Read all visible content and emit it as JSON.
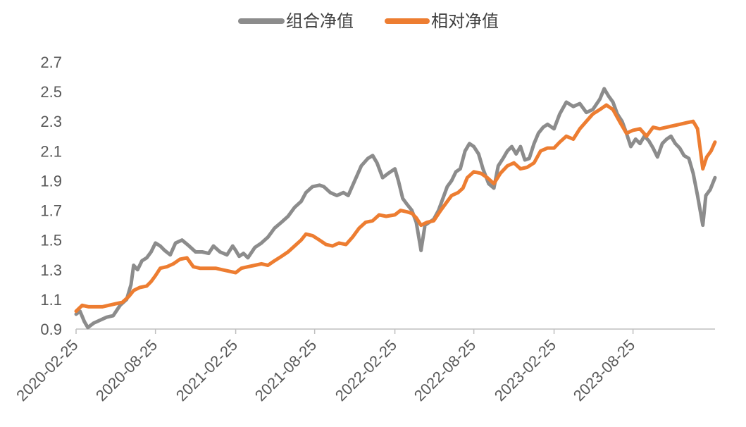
{
  "legend": {
    "position": "top-center",
    "items": [
      {
        "label": "组合净值",
        "color": "#8c8c8c"
      },
      {
        "label": "相对净值",
        "color": "#ed7d31"
      }
    ]
  },
  "chart_data": {
    "type": "line",
    "title": "",
    "xlabel": "",
    "ylabel": "",
    "grid": false,
    "ylim": [
      0.9,
      2.7
    ],
    "yticks": [
      "0.9",
      "1.1",
      "1.3",
      "1.5",
      "1.7",
      "1.9",
      "2.1",
      "2.3",
      "2.5",
      "2.7"
    ],
    "xlim": [
      "2020-02-25",
      "2024-02-29"
    ],
    "xticks": [
      "2020-02-25",
      "2020-08-25",
      "2021-02-25",
      "2021-08-25",
      "2022-02-25",
      "2022-08-25",
      "2023-02-25",
      "2023-08-25"
    ],
    "series": [
      {
        "name": "组合净值",
        "color": "#8c8c8c",
        "points": [
          [
            "2020-02-25",
            1.0
          ],
          [
            "2020-03-05",
            1.02
          ],
          [
            "2020-03-15",
            0.95
          ],
          [
            "2020-03-23",
            0.91
          ],
          [
            "2020-04-05",
            0.94
          ],
          [
            "2020-04-20",
            0.96
          ],
          [
            "2020-05-05",
            0.98
          ],
          [
            "2020-05-20",
            0.99
          ],
          [
            "2020-06-05",
            1.06
          ],
          [
            "2020-06-20",
            1.1
          ],
          [
            "2020-06-30",
            1.2
          ],
          [
            "2020-07-06",
            1.33
          ],
          [
            "2020-07-15",
            1.3
          ],
          [
            "2020-07-25",
            1.36
          ],
          [
            "2020-08-05",
            1.38
          ],
          [
            "2020-08-15",
            1.42
          ],
          [
            "2020-08-25",
            1.48
          ],
          [
            "2020-09-05",
            1.46
          ],
          [
            "2020-09-15",
            1.43
          ],
          [
            "2020-09-28",
            1.4
          ],
          [
            "2020-10-10",
            1.48
          ],
          [
            "2020-10-25",
            1.5
          ],
          [
            "2020-11-10",
            1.46
          ],
          [
            "2020-11-25",
            1.42
          ],
          [
            "2020-12-10",
            1.42
          ],
          [
            "2020-12-25",
            1.41
          ],
          [
            "2021-01-05",
            1.46
          ],
          [
            "2021-01-20",
            1.42
          ],
          [
            "2021-02-05",
            1.4
          ],
          [
            "2021-02-18",
            1.46
          ],
          [
            "2021-02-25",
            1.43
          ],
          [
            "2021-03-05",
            1.39
          ],
          [
            "2021-03-15",
            1.41
          ],
          [
            "2021-03-25",
            1.38
          ],
          [
            "2021-04-10",
            1.45
          ],
          [
            "2021-04-25",
            1.48
          ],
          [
            "2021-05-10",
            1.52
          ],
          [
            "2021-05-25",
            1.58
          ],
          [
            "2021-06-10",
            1.62
          ],
          [
            "2021-06-25",
            1.66
          ],
          [
            "2021-07-10",
            1.72
          ],
          [
            "2021-07-25",
            1.76
          ],
          [
            "2021-08-05",
            1.82
          ],
          [
            "2021-08-20",
            1.86
          ],
          [
            "2021-09-05",
            1.87
          ],
          [
            "2021-09-15",
            1.86
          ],
          [
            "2021-09-30",
            1.82
          ],
          [
            "2021-10-15",
            1.8
          ],
          [
            "2021-10-30",
            1.82
          ],
          [
            "2021-11-10",
            1.8
          ],
          [
            "2021-11-25",
            1.9
          ],
          [
            "2021-12-10",
            2.0
          ],
          [
            "2021-12-25",
            2.05
          ],
          [
            "2022-01-05",
            2.07
          ],
          [
            "2022-01-15",
            2.02
          ],
          [
            "2022-01-28",
            1.92
          ],
          [
            "2022-02-10",
            1.95
          ],
          [
            "2022-02-25",
            1.98
          ],
          [
            "2022-03-05",
            1.9
          ],
          [
            "2022-03-15",
            1.78
          ],
          [
            "2022-03-25",
            1.74
          ],
          [
            "2022-04-05",
            1.7
          ],
          [
            "2022-04-15",
            1.62
          ],
          [
            "2022-04-26",
            1.43
          ],
          [
            "2022-05-05",
            1.6
          ],
          [
            "2022-05-15",
            1.62
          ],
          [
            "2022-05-25",
            1.64
          ],
          [
            "2022-06-05",
            1.7
          ],
          [
            "2022-06-15",
            1.78
          ],
          [
            "2022-06-25",
            1.86
          ],
          [
            "2022-07-05",
            1.9
          ],
          [
            "2022-07-15",
            1.96
          ],
          [
            "2022-07-25",
            1.98
          ],
          [
            "2022-08-05",
            2.1
          ],
          [
            "2022-08-15",
            2.15
          ],
          [
            "2022-08-25",
            2.13
          ],
          [
            "2022-09-05",
            2.08
          ],
          [
            "2022-09-15",
            1.98
          ],
          [
            "2022-09-28",
            1.88
          ],
          [
            "2022-10-10",
            1.85
          ],
          [
            "2022-10-20",
            2.0
          ],
          [
            "2022-10-31",
            2.05
          ],
          [
            "2022-11-10",
            2.1
          ],
          [
            "2022-11-20",
            2.13
          ],
          [
            "2022-11-30",
            2.08
          ],
          [
            "2022-12-10",
            2.13
          ],
          [
            "2022-12-20",
            2.04
          ],
          [
            "2022-12-30",
            2.05
          ],
          [
            "2023-01-10",
            2.15
          ],
          [
            "2023-01-20",
            2.22
          ],
          [
            "2023-01-31",
            2.26
          ],
          [
            "2023-02-10",
            2.28
          ],
          [
            "2023-02-25",
            2.25
          ],
          [
            "2023-03-10",
            2.35
          ],
          [
            "2023-03-25",
            2.43
          ],
          [
            "2023-04-10",
            2.4
          ],
          [
            "2023-04-25",
            2.42
          ],
          [
            "2023-05-10",
            2.36
          ],
          [
            "2023-05-25",
            2.38
          ],
          [
            "2023-06-10",
            2.45
          ],
          [
            "2023-06-20",
            2.52
          ],
          [
            "2023-06-30",
            2.47
          ],
          [
            "2023-07-10",
            2.43
          ],
          [
            "2023-07-20",
            2.35
          ],
          [
            "2023-07-31",
            2.3
          ],
          [
            "2023-08-10",
            2.22
          ],
          [
            "2023-08-20",
            2.13
          ],
          [
            "2023-08-31",
            2.18
          ],
          [
            "2023-09-10",
            2.15
          ],
          [
            "2023-09-20",
            2.2
          ],
          [
            "2023-09-30",
            2.17
          ],
          [
            "2023-10-10",
            2.12
          ],
          [
            "2023-10-20",
            2.06
          ],
          [
            "2023-10-31",
            2.15
          ],
          [
            "2023-11-10",
            2.18
          ],
          [
            "2023-11-20",
            2.2
          ],
          [
            "2023-11-30",
            2.15
          ],
          [
            "2023-12-10",
            2.12
          ],
          [
            "2023-12-20",
            2.07
          ],
          [
            "2023-12-31",
            2.05
          ],
          [
            "2024-01-10",
            1.95
          ],
          [
            "2024-01-20",
            1.8
          ],
          [
            "2024-02-01",
            1.6
          ],
          [
            "2024-02-08",
            1.8
          ],
          [
            "2024-02-18",
            1.84
          ],
          [
            "2024-02-29",
            1.92
          ]
        ]
      },
      {
        "name": "相对净值",
        "color": "#ed7d31",
        "points": [
          [
            "2020-02-25",
            1.02
          ],
          [
            "2020-03-10",
            1.06
          ],
          [
            "2020-03-25",
            1.05
          ],
          [
            "2020-04-10",
            1.05
          ],
          [
            "2020-04-25",
            1.05
          ],
          [
            "2020-05-10",
            1.06
          ],
          [
            "2020-05-25",
            1.07
          ],
          [
            "2020-06-10",
            1.08
          ],
          [
            "2020-06-25",
            1.12
          ],
          [
            "2020-07-06",
            1.16
          ],
          [
            "2020-07-20",
            1.18
          ],
          [
            "2020-08-05",
            1.19
          ],
          [
            "2020-08-15",
            1.22
          ],
          [
            "2020-08-25",
            1.26
          ],
          [
            "2020-09-05",
            1.31
          ],
          [
            "2020-09-20",
            1.32
          ],
          [
            "2020-10-05",
            1.34
          ],
          [
            "2020-10-20",
            1.37
          ],
          [
            "2020-11-05",
            1.38
          ],
          [
            "2020-11-20",
            1.32
          ],
          [
            "2020-12-05",
            1.31
          ],
          [
            "2020-12-25",
            1.31
          ],
          [
            "2021-01-10",
            1.31
          ],
          [
            "2021-01-25",
            1.3
          ],
          [
            "2021-02-10",
            1.29
          ],
          [
            "2021-02-25",
            1.28
          ],
          [
            "2021-03-10",
            1.31
          ],
          [
            "2021-03-25",
            1.32
          ],
          [
            "2021-04-10",
            1.33
          ],
          [
            "2021-04-25",
            1.34
          ],
          [
            "2021-05-10",
            1.33
          ],
          [
            "2021-05-25",
            1.36
          ],
          [
            "2021-06-10",
            1.39
          ],
          [
            "2021-06-25",
            1.42
          ],
          [
            "2021-07-10",
            1.46
          ],
          [
            "2021-07-25",
            1.5
          ],
          [
            "2021-08-05",
            1.54
          ],
          [
            "2021-08-20",
            1.53
          ],
          [
            "2021-09-05",
            1.5
          ],
          [
            "2021-09-20",
            1.47
          ],
          [
            "2021-10-05",
            1.46
          ],
          [
            "2021-10-20",
            1.48
          ],
          [
            "2021-11-05",
            1.47
          ],
          [
            "2021-11-20",
            1.52
          ],
          [
            "2021-12-05",
            1.58
          ],
          [
            "2021-12-20",
            1.62
          ],
          [
            "2022-01-05",
            1.63
          ],
          [
            "2022-01-20",
            1.67
          ],
          [
            "2022-02-05",
            1.66
          ],
          [
            "2022-02-25",
            1.67
          ],
          [
            "2022-03-10",
            1.7
          ],
          [
            "2022-03-25",
            1.69
          ],
          [
            "2022-04-05",
            1.68
          ],
          [
            "2022-04-15",
            1.65
          ],
          [
            "2022-04-26",
            1.6
          ],
          [
            "2022-05-10",
            1.62
          ],
          [
            "2022-05-25",
            1.63
          ],
          [
            "2022-06-10",
            1.7
          ],
          [
            "2022-06-25",
            1.76
          ],
          [
            "2022-07-05",
            1.8
          ],
          [
            "2022-07-20",
            1.82
          ],
          [
            "2022-07-31",
            1.85
          ],
          [
            "2022-08-10",
            1.92
          ],
          [
            "2022-08-25",
            1.96
          ],
          [
            "2022-09-10",
            1.95
          ],
          [
            "2022-09-25",
            1.92
          ],
          [
            "2022-10-10",
            1.88
          ],
          [
            "2022-10-25",
            1.95
          ],
          [
            "2022-11-10",
            2.0
          ],
          [
            "2022-11-25",
            2.02
          ],
          [
            "2022-12-10",
            1.98
          ],
          [
            "2022-12-25",
            1.99
          ],
          [
            "2023-01-10",
            2.02
          ],
          [
            "2023-01-25",
            2.1
          ],
          [
            "2023-02-10",
            2.12
          ],
          [
            "2023-02-25",
            2.12
          ],
          [
            "2023-03-10",
            2.16
          ],
          [
            "2023-03-25",
            2.2
          ],
          [
            "2023-04-10",
            2.18
          ],
          [
            "2023-04-25",
            2.25
          ],
          [
            "2023-05-10",
            2.3
          ],
          [
            "2023-05-25",
            2.35
          ],
          [
            "2023-06-10",
            2.38
          ],
          [
            "2023-06-25",
            2.41
          ],
          [
            "2023-07-10",
            2.38
          ],
          [
            "2023-07-25",
            2.3
          ],
          [
            "2023-08-10",
            2.22
          ],
          [
            "2023-08-25",
            2.24
          ],
          [
            "2023-09-10",
            2.25
          ],
          [
            "2023-09-25",
            2.2
          ],
          [
            "2023-10-10",
            2.26
          ],
          [
            "2023-10-25",
            2.25
          ],
          [
            "2023-11-10",
            2.26
          ],
          [
            "2023-11-25",
            2.27
          ],
          [
            "2023-12-10",
            2.28
          ],
          [
            "2023-12-25",
            2.29
          ],
          [
            "2024-01-10",
            2.3
          ],
          [
            "2024-01-20",
            2.25
          ],
          [
            "2024-02-01",
            1.98
          ],
          [
            "2024-02-10",
            2.06
          ],
          [
            "2024-02-20",
            2.1
          ],
          [
            "2024-02-29",
            2.16
          ]
        ]
      }
    ]
  }
}
